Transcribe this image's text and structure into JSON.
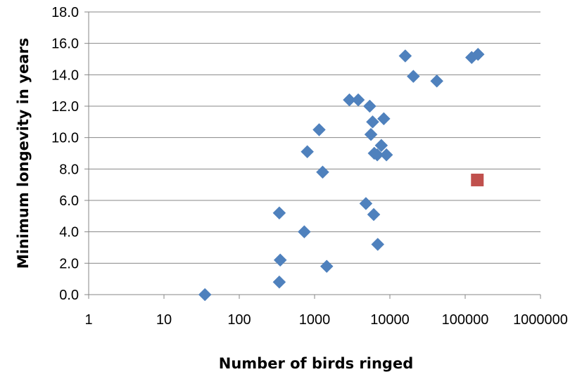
{
  "chart_data": {
    "type": "scatter",
    "title": "",
    "xlabel": "Number of birds ringed",
    "ylabel": "Minimum longevity in years",
    "x_scale": "log",
    "xlim": [
      1,
      1000000
    ],
    "ylim": [
      0,
      18
    ],
    "grid": "horizontal",
    "x_ticks": [
      1,
      10,
      100,
      1000,
      10000,
      100000,
      1000000
    ],
    "x_tick_labels": [
      "1",
      "10",
      "100",
      "1000",
      "10000",
      "100000",
      "1000000"
    ],
    "y_ticks": [
      0,
      2,
      4,
      6,
      8,
      10,
      12,
      14,
      16,
      18
    ],
    "y_tick_labels": [
      "0.0",
      "2.0",
      "4.0",
      "6.0",
      "8.0",
      "10.0",
      "12.0",
      "14.0",
      "16.0",
      "18.0"
    ],
    "series": [
      {
        "marker": "diamond",
        "color": "#4F81BD",
        "points": [
          {
            "x": 35,
            "y": 0.0
          },
          {
            "x": 340,
            "y": 0.8
          },
          {
            "x": 350,
            "y": 2.2
          },
          {
            "x": 340,
            "y": 5.2
          },
          {
            "x": 730,
            "y": 4.0
          },
          {
            "x": 800,
            "y": 9.1
          },
          {
            "x": 1150,
            "y": 10.5
          },
          {
            "x": 1280,
            "y": 7.8
          },
          {
            "x": 1450,
            "y": 1.8
          },
          {
            "x": 2900,
            "y": 12.4
          },
          {
            "x": 3800,
            "y": 12.4
          },
          {
            "x": 4800,
            "y": 5.8
          },
          {
            "x": 5400,
            "y": 12.0
          },
          {
            "x": 5600,
            "y": 10.2
          },
          {
            "x": 5900,
            "y": 11.0
          },
          {
            "x": 6100,
            "y": 5.1
          },
          {
            "x": 6200,
            "y": 9.0
          },
          {
            "x": 6800,
            "y": 8.9
          },
          {
            "x": 6900,
            "y": 3.2
          },
          {
            "x": 7700,
            "y": 9.5
          },
          {
            "x": 8300,
            "y": 11.2
          },
          {
            "x": 9000,
            "y": 8.9
          },
          {
            "x": 16000,
            "y": 15.2
          },
          {
            "x": 20500,
            "y": 13.9
          },
          {
            "x": 42000,
            "y": 13.6
          },
          {
            "x": 122000,
            "y": 15.1
          },
          {
            "x": 148000,
            "y": 15.3
          }
        ]
      },
      {
        "marker": "square",
        "color": "#C0504D",
        "points": [
          {
            "x": 145000,
            "y": 7.3
          }
        ]
      }
    ]
  }
}
